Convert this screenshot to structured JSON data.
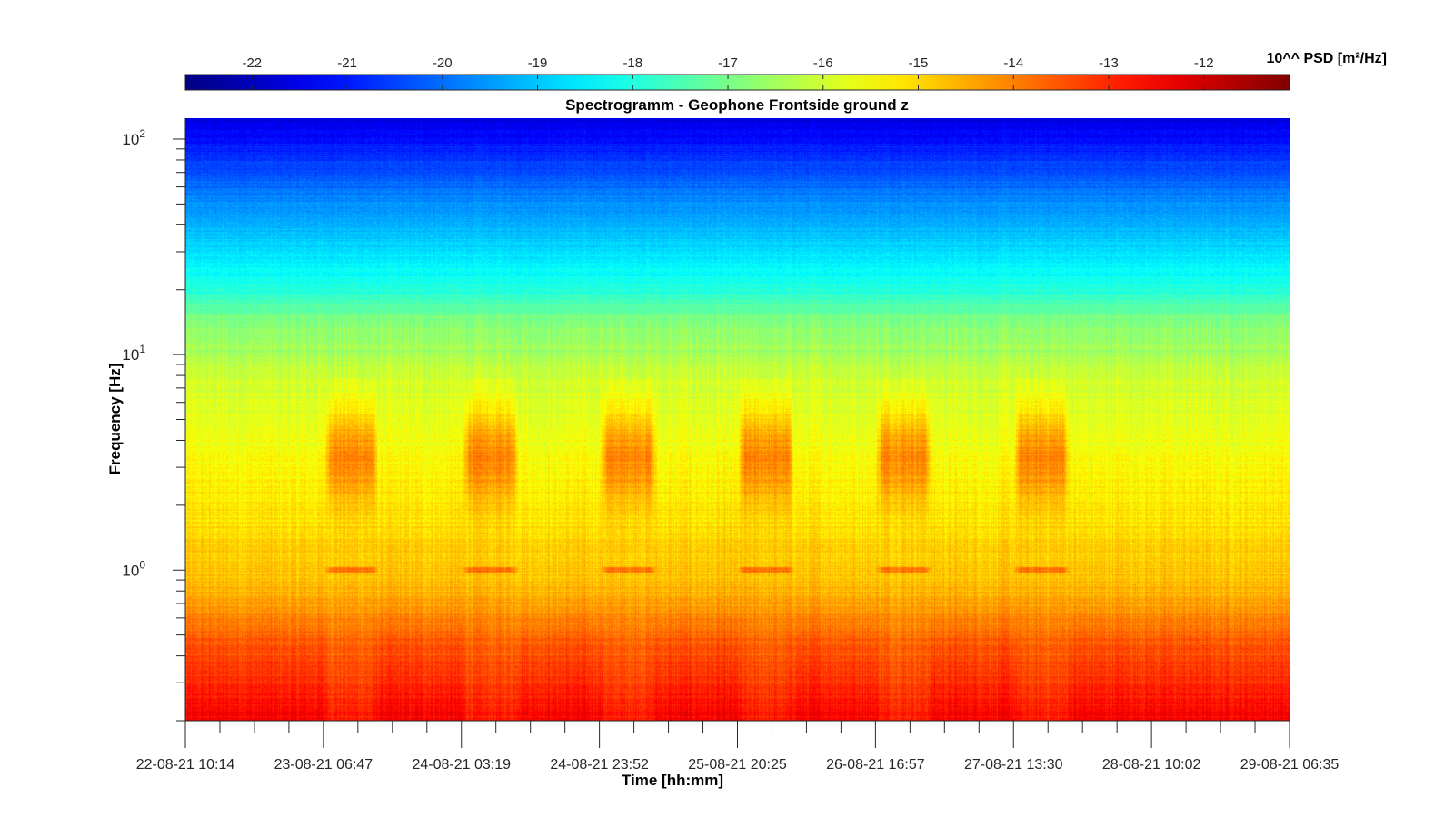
{
  "chart_data": {
    "type": "heatmap",
    "title": "Spectrogramm - Geophone Frontside ground z",
    "xlabel": "Time [hh:mm]",
    "ylabel": "Frequency [Hz]",
    "y_scale": "log",
    "ylim_hz": [
      0.2,
      125
    ],
    "y_ticks": [
      {
        "value": 1,
        "base": "10",
        "exp": "0"
      },
      {
        "value": 10,
        "base": "10",
        "exp": "1"
      },
      {
        "value": 100,
        "base": "10",
        "exp": "2"
      }
    ],
    "x_range": [
      "22-08-21 10:14",
      "29-08-21 06:35"
    ],
    "x_ticks": [
      "22-08-21 10:14",
      "23-08-21 06:47",
      "24-08-21 03:19",
      "24-08-21 23:52",
      "25-08-21 20:25",
      "26-08-21 16:57",
      "27-08-21 13:30",
      "28-08-21 10:02",
      "29-08-21 06:35"
    ],
    "x_minor_ticks_per_interval": 4,
    "colorbar": {
      "label": "10^^ PSD [m²/Hz]",
      "colormap": "jet",
      "min": -22.7,
      "max": -11.1,
      "ticks": [
        "-22",
        "-21",
        "-20",
        "-19",
        "-18",
        "-17",
        "-16",
        "-15",
        "-14",
        "-13",
        "-12"
      ],
      "position": "top"
    },
    "day_activity_band_hz": [
      2.0,
      6.0
    ],
    "night_low_frequency_band_hz": [
      0.2,
      0.7
    ],
    "line_at_hz": 1.0,
    "mean_level_by_frequency": [
      {
        "f": 0.2,
        "level": -12.8
      },
      {
        "f": 0.3,
        "level": -13.3
      },
      {
        "f": 0.5,
        "level": -13.8
      },
      {
        "f": 0.8,
        "level": -14.6
      },
      {
        "f": 1.0,
        "level": -14.8
      },
      {
        "f": 2.0,
        "level": -15.2
      },
      {
        "f": 4.0,
        "level": -15.6
      },
      {
        "f": 8.0,
        "level": -16.0
      },
      {
        "f": 10,
        "level": -16.4
      },
      {
        "f": 15,
        "level": -17.0
      },
      {
        "f": 20,
        "level": -18.0
      },
      {
        "f": 40,
        "level": -19.2
      },
      {
        "f": 80,
        "level": -20.6
      },
      {
        "f": 125,
        "level": -21.6
      }
    ],
    "daytime_activity_windows": [
      [
        "23-08-21 06:47",
        "23-08-21 15:00"
      ],
      [
        "24-08-21 03:19",
        "24-08-21 12:00"
      ],
      [
        "24-08-21 23:52",
        "25-08-21 08:30"
      ],
      [
        "25-08-21 20:25",
        "26-08-21 05:00"
      ],
      [
        "26-08-21 16:57",
        "27-08-21 01:30"
      ],
      [
        "27-08-21 13:30",
        "27-08-21 22:00"
      ]
    ]
  }
}
